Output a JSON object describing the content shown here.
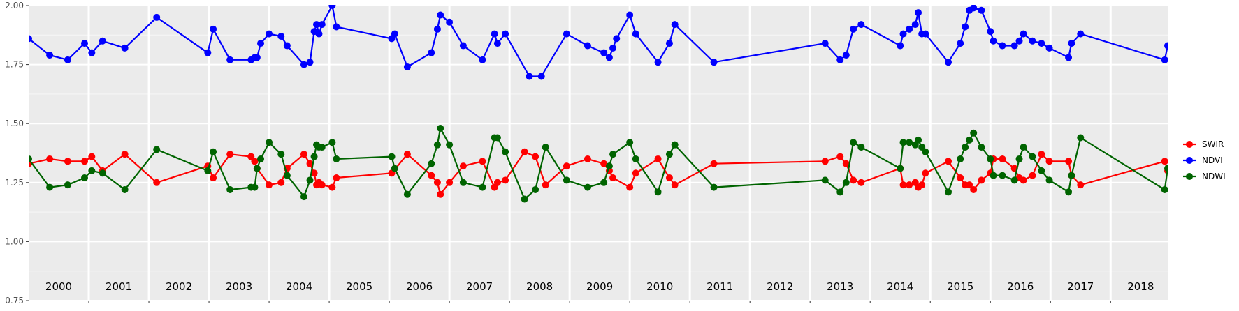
{
  "chart_data": {
    "type": "line",
    "ylim": [
      0.75,
      2.0
    ],
    "y_ticks": [
      "0.75",
      "1.00",
      "1.25",
      "1.50",
      "1.75",
      "2.00"
    ],
    "year_labels": [
      "2000",
      "2001",
      "2002",
      "2003",
      "2004",
      "2005",
      "2006",
      "2007",
      "2008",
      "2009",
      "2010",
      "2011",
      "2012",
      "2013",
      "2014",
      "2015",
      "2016",
      "2017",
      "2018"
    ],
    "xlim": [
      2000.0,
      2018.95
    ],
    "grid": true,
    "legend_position": "right",
    "legend": [
      "SWIR",
      "NDVI",
      "NDWI"
    ],
    "colors": {
      "SWIR": "#ff0000",
      "NDVI": "#0000ff",
      "NDWI": "#006400",
      "panel": "#ebebeb"
    },
    "series": [
      {
        "name": "NDVI",
        "points": [
          [
            2000.0,
            1.86
          ],
          [
            2000.35,
            1.79
          ],
          [
            2000.65,
            1.77
          ],
          [
            2000.93,
            1.84
          ],
          [
            2001.05,
            1.8
          ],
          [
            2001.23,
            1.85
          ],
          [
            2001.6,
            1.82
          ],
          [
            2002.13,
            1.95
          ],
          [
            2002.98,
            1.8
          ],
          [
            2003.07,
            1.9
          ],
          [
            2003.35,
            1.77
          ],
          [
            2003.7,
            1.77
          ],
          [
            2003.76,
            1.78
          ],
          [
            2003.8,
            1.78
          ],
          [
            2003.86,
            1.84
          ],
          [
            2004.0,
            1.88
          ],
          [
            2004.2,
            1.87
          ],
          [
            2004.3,
            1.83
          ],
          [
            2004.58,
            1.75
          ],
          [
            2004.68,
            1.76
          ],
          [
            2004.75,
            1.89
          ],
          [
            2004.79,
            1.92
          ],
          [
            2004.83,
            1.88
          ],
          [
            2004.88,
            1.92
          ],
          [
            2005.05,
            2.0
          ],
          [
            2005.12,
            1.91
          ],
          [
            2006.04,
            1.86
          ],
          [
            2006.09,
            1.88
          ],
          [
            2006.3,
            1.74
          ],
          [
            2006.7,
            1.8
          ],
          [
            2006.8,
            1.9
          ],
          [
            2006.85,
            1.96
          ],
          [
            2007.0,
            1.93
          ],
          [
            2007.23,
            1.83
          ],
          [
            2007.55,
            1.77
          ],
          [
            2007.75,
            1.88
          ],
          [
            2007.8,
            1.84
          ],
          [
            2007.93,
            1.88
          ],
          [
            2008.33,
            1.7
          ],
          [
            2008.53,
            1.7
          ],
          [
            2008.95,
            1.88
          ],
          [
            2009.3,
            1.83
          ],
          [
            2009.57,
            1.8
          ],
          [
            2009.66,
            1.78
          ],
          [
            2009.72,
            1.82
          ],
          [
            2009.78,
            1.86
          ],
          [
            2010.0,
            1.96
          ],
          [
            2010.1,
            1.88
          ],
          [
            2010.47,
            1.76
          ],
          [
            2010.66,
            1.84
          ],
          [
            2010.75,
            1.92
          ],
          [
            2011.4,
            1.76
          ],
          [
            2013.25,
            1.84
          ],
          [
            2013.5,
            1.77
          ],
          [
            2013.6,
            1.79
          ],
          [
            2013.72,
            1.9
          ],
          [
            2013.85,
            1.92
          ],
          [
            2014.5,
            1.83
          ],
          [
            2014.55,
            1.88
          ],
          [
            2014.65,
            1.9
          ],
          [
            2014.75,
            1.92
          ],
          [
            2014.8,
            1.97
          ],
          [
            2014.86,
            1.88
          ],
          [
            2014.92,
            1.88
          ],
          [
            2015.3,
            1.76
          ],
          [
            2015.5,
            1.84
          ],
          [
            2015.58,
            1.91
          ],
          [
            2015.65,
            1.98
          ],
          [
            2015.72,
            1.99
          ],
          [
            2015.85,
            1.98
          ],
          [
            2016.0,
            1.89
          ],
          [
            2016.05,
            1.85
          ],
          [
            2016.2,
            1.83
          ],
          [
            2016.4,
            1.83
          ],
          [
            2016.48,
            1.85
          ],
          [
            2016.55,
            1.88
          ],
          [
            2016.7,
            1.85
          ],
          [
            2016.85,
            1.84
          ],
          [
            2016.98,
            1.82
          ],
          [
            2017.3,
            1.78
          ],
          [
            2017.35,
            1.84
          ],
          [
            2017.5,
            1.88
          ],
          [
            2018.9,
            1.77
          ],
          [
            2018.95,
            1.83
          ]
        ]
      },
      {
        "name": "SWIR",
        "points": [
          [
            2000.0,
            1.33
          ],
          [
            2000.35,
            1.35
          ],
          [
            2000.65,
            1.34
          ],
          [
            2000.93,
            1.34
          ],
          [
            2001.05,
            1.36
          ],
          [
            2001.23,
            1.3
          ],
          [
            2001.6,
            1.37
          ],
          [
            2002.13,
            1.25
          ],
          [
            2002.98,
            1.32
          ],
          [
            2003.07,
            1.27
          ],
          [
            2003.35,
            1.37
          ],
          [
            2003.7,
            1.36
          ],
          [
            2003.76,
            1.34
          ],
          [
            2003.8,
            1.31
          ],
          [
            2004.0,
            1.24
          ],
          [
            2004.2,
            1.25
          ],
          [
            2004.3,
            1.31
          ],
          [
            2004.58,
            1.37
          ],
          [
            2004.68,
            1.33
          ],
          [
            2004.75,
            1.29
          ],
          [
            2004.79,
            1.24
          ],
          [
            2004.83,
            1.25
          ],
          [
            2004.88,
            1.24
          ],
          [
            2005.05,
            1.23
          ],
          [
            2005.12,
            1.27
          ],
          [
            2006.04,
            1.29
          ],
          [
            2006.3,
            1.37
          ],
          [
            2006.7,
            1.28
          ],
          [
            2006.8,
            1.25
          ],
          [
            2006.85,
            1.2
          ],
          [
            2007.0,
            1.25
          ],
          [
            2007.23,
            1.32
          ],
          [
            2007.55,
            1.34
          ],
          [
            2007.75,
            1.23
          ],
          [
            2007.8,
            1.25
          ],
          [
            2007.93,
            1.26
          ],
          [
            2008.25,
            1.38
          ],
          [
            2008.43,
            1.36
          ],
          [
            2008.6,
            1.24
          ],
          [
            2008.95,
            1.32
          ],
          [
            2009.3,
            1.35
          ],
          [
            2009.57,
            1.33
          ],
          [
            2009.66,
            1.3
          ],
          [
            2009.72,
            1.27
          ],
          [
            2010.0,
            1.23
          ],
          [
            2010.1,
            1.29
          ],
          [
            2010.47,
            1.35
          ],
          [
            2010.66,
            1.27
          ],
          [
            2010.75,
            1.24
          ],
          [
            2011.4,
            1.33
          ],
          [
            2013.25,
            1.34
          ],
          [
            2013.5,
            1.36
          ],
          [
            2013.6,
            1.33
          ],
          [
            2013.72,
            1.26
          ],
          [
            2013.85,
            1.25
          ],
          [
            2014.5,
            1.31
          ],
          [
            2014.55,
            1.24
          ],
          [
            2014.65,
            1.24
          ],
          [
            2014.75,
            1.25
          ],
          [
            2014.8,
            1.23
          ],
          [
            2014.86,
            1.24
          ],
          [
            2014.92,
            1.29
          ],
          [
            2015.3,
            1.34
          ],
          [
            2015.5,
            1.27
          ],
          [
            2015.58,
            1.24
          ],
          [
            2015.65,
            1.24
          ],
          [
            2015.72,
            1.22
          ],
          [
            2015.85,
            1.26
          ],
          [
            2016.0,
            1.29
          ],
          [
            2016.05,
            1.35
          ],
          [
            2016.2,
            1.35
          ],
          [
            2016.4,
            1.31
          ],
          [
            2016.48,
            1.27
          ],
          [
            2016.55,
            1.26
          ],
          [
            2016.7,
            1.28
          ],
          [
            2016.85,
            1.37
          ],
          [
            2016.98,
            1.34
          ],
          [
            2017.3,
            1.34
          ],
          [
            2017.35,
            1.28
          ],
          [
            2017.5,
            1.24
          ],
          [
            2018.9,
            1.34
          ],
          [
            2018.95,
            1.3
          ]
        ]
      },
      {
        "name": "NDWI",
        "points": [
          [
            2000.0,
            1.35
          ],
          [
            2000.35,
            1.23
          ],
          [
            2000.65,
            1.24
          ],
          [
            2000.93,
            1.27
          ],
          [
            2001.05,
            1.3
          ],
          [
            2001.23,
            1.29
          ],
          [
            2001.6,
            1.22
          ],
          [
            2002.13,
            1.39
          ],
          [
            2002.98,
            1.3
          ],
          [
            2003.07,
            1.38
          ],
          [
            2003.35,
            1.22
          ],
          [
            2003.7,
            1.23
          ],
          [
            2003.76,
            1.23
          ],
          [
            2003.8,
            1.31
          ],
          [
            2003.86,
            1.35
          ],
          [
            2004.0,
            1.42
          ],
          [
            2004.2,
            1.37
          ],
          [
            2004.3,
            1.28
          ],
          [
            2004.58,
            1.19
          ],
          [
            2004.68,
            1.26
          ],
          [
            2004.75,
            1.36
          ],
          [
            2004.79,
            1.41
          ],
          [
            2004.83,
            1.4
          ],
          [
            2004.88,
            1.4
          ],
          [
            2005.05,
            1.42
          ],
          [
            2005.12,
            1.35
          ],
          [
            2006.04,
            1.36
          ],
          [
            2006.09,
            1.31
          ],
          [
            2006.3,
            1.2
          ],
          [
            2006.7,
            1.33
          ],
          [
            2006.8,
            1.41
          ],
          [
            2006.85,
            1.48
          ],
          [
            2007.0,
            1.41
          ],
          [
            2007.23,
            1.25
          ],
          [
            2007.55,
            1.23
          ],
          [
            2007.75,
            1.44
          ],
          [
            2007.8,
            1.44
          ],
          [
            2007.93,
            1.38
          ],
          [
            2008.25,
            1.18
          ],
          [
            2008.43,
            1.22
          ],
          [
            2008.6,
            1.4
          ],
          [
            2008.95,
            1.26
          ],
          [
            2009.3,
            1.23
          ],
          [
            2009.57,
            1.25
          ],
          [
            2009.66,
            1.32
          ],
          [
            2009.72,
            1.37
          ],
          [
            2010.0,
            1.42
          ],
          [
            2010.1,
            1.35
          ],
          [
            2010.47,
            1.21
          ],
          [
            2010.66,
            1.37
          ],
          [
            2010.75,
            1.41
          ],
          [
            2011.4,
            1.23
          ],
          [
            2013.25,
            1.26
          ],
          [
            2013.5,
            1.21
          ],
          [
            2013.6,
            1.25
          ],
          [
            2013.72,
            1.42
          ],
          [
            2013.85,
            1.4
          ],
          [
            2014.5,
            1.31
          ],
          [
            2014.55,
            1.42
          ],
          [
            2014.65,
            1.42
          ],
          [
            2014.75,
            1.41
          ],
          [
            2014.8,
            1.43
          ],
          [
            2014.86,
            1.4
          ],
          [
            2014.92,
            1.38
          ],
          [
            2015.3,
            1.21
          ],
          [
            2015.5,
            1.35
          ],
          [
            2015.58,
            1.4
          ],
          [
            2015.65,
            1.43
          ],
          [
            2015.72,
            1.46
          ],
          [
            2015.85,
            1.4
          ],
          [
            2016.0,
            1.35
          ],
          [
            2016.05,
            1.28
          ],
          [
            2016.2,
            1.28
          ],
          [
            2016.4,
            1.26
          ],
          [
            2016.48,
            1.35
          ],
          [
            2016.55,
            1.4
          ],
          [
            2016.7,
            1.36
          ],
          [
            2016.85,
            1.3
          ],
          [
            2016.98,
            1.26
          ],
          [
            2017.3,
            1.21
          ],
          [
            2017.35,
            1.28
          ],
          [
            2017.5,
            1.44
          ],
          [
            2018.9,
            1.22
          ],
          [
            2018.95,
            1.31
          ]
        ]
      }
    ]
  }
}
